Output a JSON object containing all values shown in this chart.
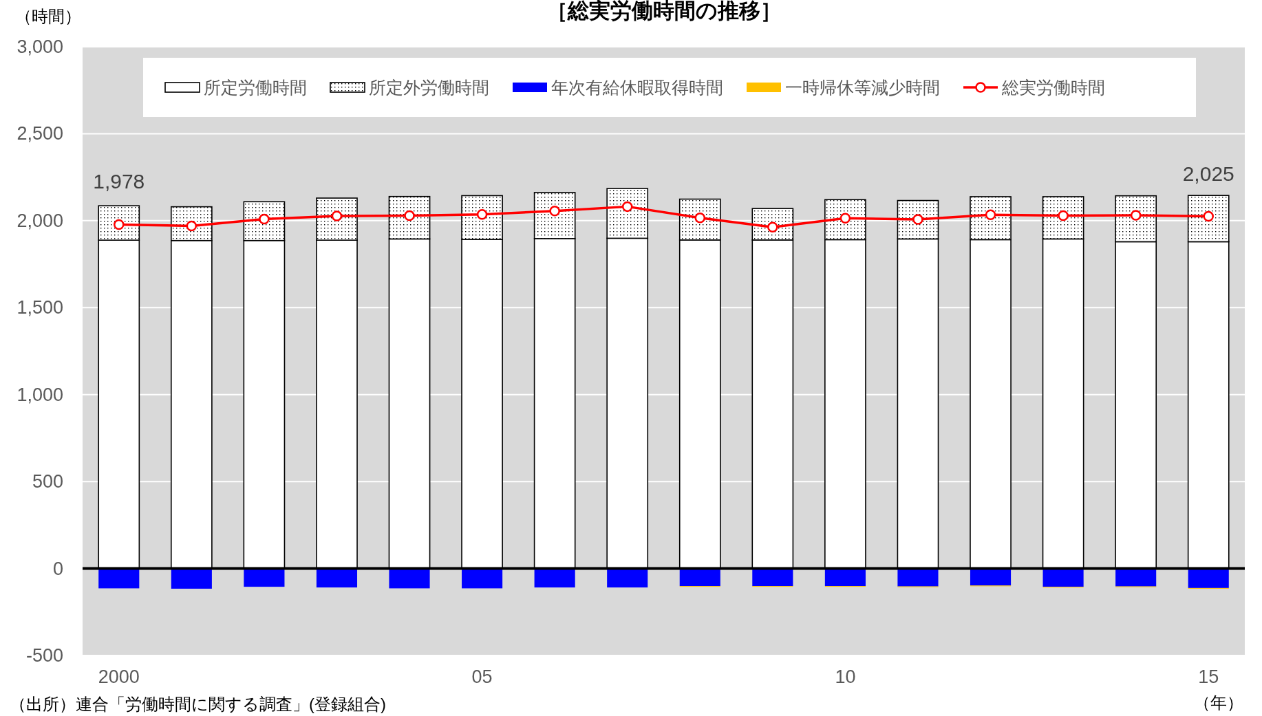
{
  "chart_data": {
    "type": "bar",
    "stacked": true,
    "title": "［総実労働時間の推移］",
    "ylabel": "（時間）",
    "xlabel": "（年）",
    "categories": [
      "2000",
      null,
      null,
      null,
      null,
      "05",
      null,
      null,
      null,
      null,
      "10",
      null,
      null,
      null,
      null,
      "15"
    ],
    "series": [
      {
        "name": "所定労働時間",
        "color": "#ffffff",
        "values": [
          1888,
          1886,
          1886,
          1888,
          1895,
          1892,
          1897,
          1899,
          1889,
          1889,
          1891,
          1895,
          1891,
          1895,
          1879,
          1879
        ]
      },
      {
        "name": "所定外労働時間",
        "color": "#000000",
        "values": [
          198,
          194,
          223,
          242,
          244,
          252,
          265,
          286,
          235,
          181,
          230,
          221,
          247,
          243,
          264,
          266
        ]
      },
      {
        "name": "年次有給休暇取得時間",
        "color": "#0000ff",
        "values": [
          -114,
          -116,
          -105,
          -109,
          -114,
          -114,
          -109,
          -109,
          -101,
          -101,
          -101,
          -103,
          -98,
          -105,
          -103,
          -112
        ]
      },
      {
        "name": "一時帰休等減少時間",
        "color": "#ffc000",
        "values": [
          0,
          0,
          0,
          0,
          0,
          0,
          0,
          0,
          -4,
          -4,
          -4,
          -4,
          -4,
          -4,
          -4,
          -4
        ]
      },
      {
        "name": "総実労働時間",
        "type": "line",
        "color": "#ff0000",
        "marker": "circle",
        "values": [
          1978,
          1970,
          2009,
          2027,
          2029,
          2036,
          2056,
          2081,
          2016,
          1963,
          2014,
          2007,
          2034,
          2029,
          2031,
          2025
        ],
        "value_labels": [
          "1,978",
          null,
          null,
          null,
          null,
          null,
          null,
          null,
          null,
          null,
          null,
          null,
          null,
          null,
          null,
          "2,025"
        ]
      }
    ],
    "ylim": [
      -500,
      3000
    ],
    "yticks": [
      {
        "value": -500,
        "label": "-500"
      },
      0,
      500,
      {
        "value": 1000,
        "label": "1,000"
      },
      {
        "value": 1500,
        "label": "1,500"
      },
      {
        "value": 2000,
        "label": "2,000"
      },
      {
        "value": 2500,
        "label": "2,500"
      },
      {
        "value": 3000,
        "label": "3,000"
      }
    ],
    "grid": "y",
    "legend": "top",
    "annotations": [
      "（出所）連合「労働時間に関する調査」(登録組合)"
    ]
  }
}
